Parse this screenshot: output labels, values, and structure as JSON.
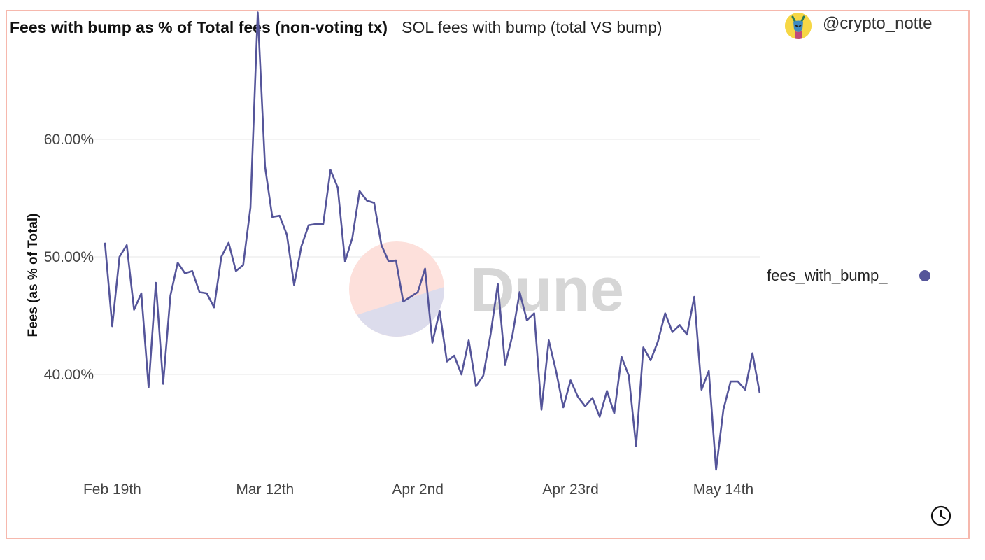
{
  "header": {
    "title": "Fees with bump as % of Total fees (non-voting tx)",
    "subtitle": "SOL fees with bump (total VS bump)",
    "author": "@crypto_notte"
  },
  "watermark": {
    "text": "Dune"
  },
  "icons": {
    "avatar": "avatar-icon",
    "clock": "clock-icon"
  },
  "colors": {
    "series": "#55559a",
    "frame": "#f6b8ad",
    "grid": "#ececec"
  },
  "chart_data": {
    "type": "line",
    "ylabel": "Fees (as % of Total)",
    "xlabel": "",
    "x_ticks": [
      "Feb 19th",
      "Mar 12th",
      "Apr 2nd",
      "Apr 23rd",
      "May 14th"
    ],
    "y_ticks": [
      "40.00%",
      "50.00%",
      "60.00%"
    ],
    "ylim": [
      25,
      72
    ],
    "grid": true,
    "legend": "right",
    "series": [
      {
        "name": "fees_with_bump_",
        "x_start": "2022-02-18",
        "values": [
          51.2,
          44.1,
          50.0,
          51.0,
          45.5,
          46.9,
          38.9,
          47.8,
          39.2,
          46.7,
          49.5,
          48.6,
          48.8,
          47.0,
          46.9,
          45.7,
          50.0,
          51.2,
          48.8,
          49.3,
          54.2,
          70.8,
          57.7,
          53.4,
          53.5,
          51.9,
          47.6,
          50.9,
          52.7,
          52.8,
          52.8,
          57.4,
          55.9,
          49.6,
          51.6,
          55.6,
          54.8,
          54.6,
          51.0,
          49.6,
          49.7,
          46.2,
          46.6,
          47.0,
          49.0,
          42.7,
          45.4,
          41.1,
          41.6,
          40.0,
          42.9,
          39.0,
          39.9,
          43.4,
          47.7,
          40.8,
          43.3,
          47.0,
          44.6,
          45.2,
          37.0,
          42.9,
          40.3,
          37.2,
          39.5,
          38.1,
          37.3,
          38.0,
          36.4,
          38.6,
          36.7,
          41.5,
          39.9,
          33.9,
          42.3,
          41.2,
          42.8,
          45.2,
          43.6,
          44.2,
          43.4,
          46.6,
          38.7,
          40.3,
          31.9,
          37.0,
          39.4,
          39.4,
          38.7,
          41.8,
          38.4
        ]
      }
    ]
  }
}
